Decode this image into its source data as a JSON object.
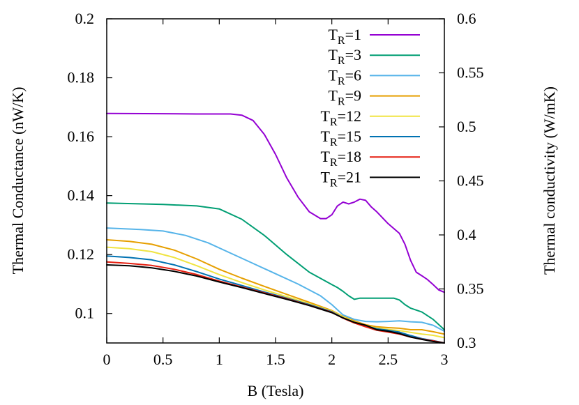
{
  "chart_data": {
    "type": "line",
    "xlabel": "B (Tesla)",
    "ylabel": "Thermal Conductance (nW/K)",
    "y2label": "Thermal conductivity (W/mK)",
    "xlim": [
      0,
      3
    ],
    "ylim": [
      0.09,
      0.2
    ],
    "y2lim": [
      0.3,
      0.6
    ],
    "x_ticks": [
      0,
      0.5,
      1,
      1.5,
      2,
      2.5,
      3
    ],
    "x_tick_labels": [
      "0",
      "0.5",
      "1",
      "1.5",
      "2",
      "2.5",
      "3"
    ],
    "y_ticks": [
      0.1,
      0.12,
      0.14,
      0.16,
      0.18,
      0.2
    ],
    "y_tick_labels": [
      "0.1",
      "0.12",
      "0.14",
      "0.16",
      "0.18",
      "0.2"
    ],
    "y2_ticks": [
      0.3,
      0.35,
      0.4,
      0.45,
      0.5,
      0.55,
      0.6
    ],
    "y2_tick_labels": [
      "0.3",
      "0.35",
      "0.4",
      "0.45",
      "0.5",
      "0.55",
      "0.6"
    ],
    "grid": false,
    "legend_position": "top-right",
    "series": [
      {
        "name": "T_R=1",
        "label_main": "T",
        "label_sub": "R",
        "label_rest": "=1",
        "color": "#9400d3",
        "x": [
          0,
          0.5,
          0.8,
          1.0,
          1.1,
          1.2,
          1.3,
          1.4,
          1.5,
          1.6,
          1.7,
          1.8,
          1.9,
          1.95,
          2.0,
          2.05,
          2.1,
          2.15,
          2.2,
          2.25,
          2.3,
          2.35,
          2.4,
          2.5,
          2.6,
          2.65,
          2.7,
          2.75,
          2.8,
          2.85,
          2.9,
          2.95,
          3.0
        ],
        "y": [
          0.1679,
          0.1678,
          0.1677,
          0.1677,
          0.1677,
          0.1673,
          0.1655,
          0.1608,
          0.154,
          0.146,
          0.1395,
          0.1345,
          0.1322,
          0.1322,
          0.1335,
          0.1365,
          0.1378,
          0.1372,
          0.1378,
          0.1388,
          0.1384,
          0.1362,
          0.1345,
          0.1305,
          0.1272,
          0.1235,
          0.118,
          0.114,
          0.1128,
          0.1115,
          0.1098,
          0.108,
          0.1072
        ]
      },
      {
        "name": "T_R=3",
        "label_main": "T",
        "label_sub": "R",
        "label_rest": "=3",
        "color": "#009e73",
        "x": [
          0,
          0.5,
          0.8,
          1.0,
          1.2,
          1.4,
          1.6,
          1.8,
          2.0,
          2.05,
          2.1,
          2.15,
          2.2,
          2.25,
          2.3,
          2.4,
          2.5,
          2.55,
          2.6,
          2.65,
          2.7,
          2.8,
          2.9,
          3.0
        ],
        "y": [
          0.1375,
          0.137,
          0.1365,
          0.1355,
          0.132,
          0.1265,
          0.12,
          0.114,
          0.1098,
          0.1088,
          0.1075,
          0.106,
          0.1048,
          0.1052,
          0.1052,
          0.1052,
          0.1052,
          0.1052,
          0.1046,
          0.103,
          0.1018,
          0.1005,
          0.098,
          0.0945
        ]
      },
      {
        "name": "T_R=6",
        "label_main": "T",
        "label_sub": "R",
        "label_rest": "=6",
        "color": "#56b4e9",
        "x": [
          0,
          0.3,
          0.5,
          0.7,
          0.9,
          1.1,
          1.3,
          1.5,
          1.7,
          1.9,
          2.0,
          2.1,
          2.2,
          2.3,
          2.4,
          2.5,
          2.6,
          2.7,
          2.8,
          2.9,
          3.0
        ],
        "y": [
          0.129,
          0.1285,
          0.128,
          0.1265,
          0.124,
          0.1205,
          0.117,
          0.1135,
          0.11,
          0.106,
          0.103,
          0.0995,
          0.098,
          0.0973,
          0.0972,
          0.0973,
          0.0975,
          0.0972,
          0.097,
          0.096,
          0.094
        ]
      },
      {
        "name": "T_R=9",
        "label_main": "T",
        "label_sub": "R",
        "label_rest": "=9",
        "color": "#e69f00",
        "x": [
          0,
          0.2,
          0.4,
          0.6,
          0.8,
          1.0,
          1.2,
          1.4,
          1.6,
          1.8,
          2.0,
          2.1,
          2.2,
          2.3,
          2.4,
          2.5,
          2.6,
          2.7,
          2.8,
          2.9,
          3.0
        ],
        "y": [
          0.125,
          0.1245,
          0.1235,
          0.1215,
          0.1185,
          0.115,
          0.112,
          0.1092,
          0.1065,
          0.1038,
          0.101,
          0.099,
          0.0975,
          0.0962,
          0.0955,
          0.0952,
          0.095,
          0.0945,
          0.0945,
          0.0938,
          0.093
        ]
      },
      {
        "name": "T_R=12",
        "label_main": "T",
        "label_sub": "R",
        "label_rest": "=12",
        "color": "#f0e442",
        "x": [
          0,
          0.2,
          0.4,
          0.6,
          0.8,
          1.0,
          1.2,
          1.4,
          1.6,
          1.8,
          2.0,
          2.1,
          2.2,
          2.3,
          2.4,
          2.5,
          2.6,
          2.7,
          2.8,
          2.9,
          3.0
        ],
        "y": [
          0.1225,
          0.122,
          0.121,
          0.119,
          0.1162,
          0.1132,
          0.1105,
          0.108,
          0.1057,
          0.1033,
          0.1008,
          0.0988,
          0.0972,
          0.0958,
          0.095,
          0.0946,
          0.0942,
          0.0936,
          0.093,
          0.0926,
          0.0918
        ]
      },
      {
        "name": "T_R=15",
        "label_main": "T",
        "label_sub": "R",
        "label_rest": "=15",
        "color": "#0072b2",
        "x": [
          0,
          0.2,
          0.4,
          0.6,
          0.8,
          1.0,
          1.2,
          1.4,
          1.6,
          1.8,
          2.0,
          2.1,
          2.2,
          2.3,
          2.4,
          2.5,
          2.6,
          2.7,
          2.8,
          2.9,
          3.0
        ],
        "y": [
          0.1195,
          0.119,
          0.1182,
          0.1165,
          0.1142,
          0.1117,
          0.1095,
          0.1073,
          0.1052,
          0.103,
          0.1006,
          0.0985,
          0.097,
          0.0958,
          0.0948,
          0.0943,
          0.0937,
          0.0925,
          0.0915,
          0.0908,
          0.09
        ]
      },
      {
        "name": "T_R=18",
        "label_main": "T",
        "label_sub": "R",
        "label_rest": "=18",
        "color": "#e51e10",
        "x": [
          0,
          0.2,
          0.4,
          0.6,
          0.8,
          1.0,
          1.2,
          1.4,
          1.6,
          1.8,
          2.0,
          2.1,
          2.2,
          2.3,
          2.4,
          2.5,
          2.6,
          2.7,
          2.8,
          2.9,
          3.0
        ],
        "y": [
          0.1175,
          0.117,
          0.1163,
          0.115,
          0.1132,
          0.111,
          0.109,
          0.107,
          0.105,
          0.1028,
          0.1004,
          0.0984,
          0.0968,
          0.0955,
          0.0943,
          0.0937,
          0.093,
          0.092,
          0.0913,
          0.0907,
          0.09
        ]
      },
      {
        "name": "T_R=21",
        "label_main": "T",
        "label_sub": "R",
        "label_rest": "=21",
        "color": "#000000",
        "x": [
          0,
          0.2,
          0.4,
          0.6,
          0.8,
          1.0,
          1.2,
          1.4,
          1.6,
          1.8,
          2.0,
          2.1,
          2.2,
          2.3,
          2.4,
          2.5,
          2.6,
          2.7,
          2.8,
          2.9,
          3.0
        ],
        "y": [
          0.1165,
          0.1162,
          0.1155,
          0.1143,
          0.1127,
          0.1107,
          0.1088,
          0.1068,
          0.1048,
          0.1027,
          0.1003,
          0.0985,
          0.097,
          0.096,
          0.0945,
          0.094,
          0.0932,
          0.092,
          0.0912,
          0.0905,
          0.0898
        ]
      }
    ]
  }
}
